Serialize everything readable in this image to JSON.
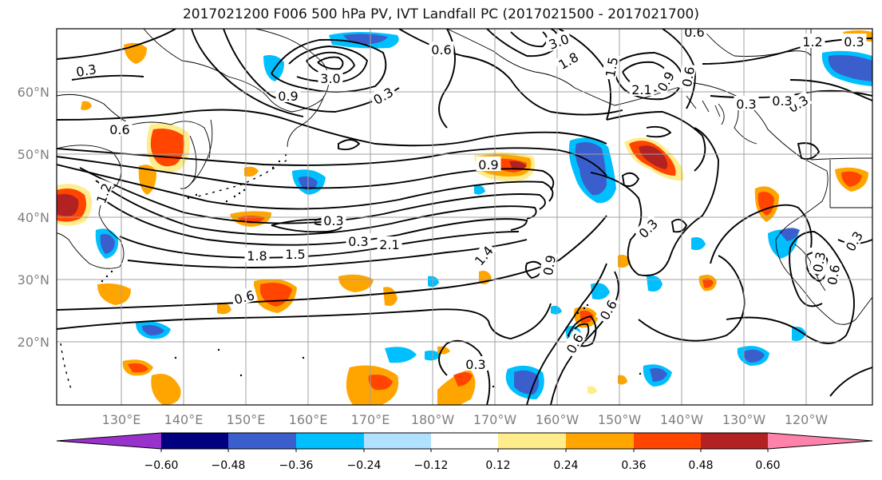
{
  "title": "2017021200 F006 500 hPa PV, IVT Landfall PC (2017021500 - 2017021700)",
  "lat_labels": [
    "60°N",
    "50°N",
    "40°N",
    "30°N",
    "20°N"
  ],
  "lon_labels": [
    "130°E",
    "140°E",
    "150°E",
    "160°E",
    "170°E",
    "180°W",
    "170°W",
    "160°W",
    "150°W",
    "140°W",
    "130°W",
    "120°W"
  ],
  "colorbar": {
    "colors": [
      "#9932cc",
      "#000080",
      "#3a5fcd",
      "#00bfff",
      "#b0e2ff",
      "#ffffff",
      "#ffec8b",
      "#ffa500",
      "#ff4500",
      "#b22222",
      "#ff82ab"
    ],
    "tick_labels": [
      "−0.60",
      "−0.48",
      "−0.36",
      "−0.24",
      "−0.12",
      "0.12",
      "0.24",
      "0.36",
      "0.48",
      "0.60"
    ]
  },
  "contour_labels": [
    "0.3",
    "1.2",
    "3.0",
    "0.6",
    "0.9",
    "0.3",
    "3.0",
    "1.8",
    "1.5",
    "2.1",
    "0.9",
    "0.6",
    "0.3",
    "0.3",
    "0.6",
    "0.9",
    "1.2",
    "0.3",
    "0.6",
    "0.6",
    "0.3",
    "0.3",
    "2.1",
    "1.8",
    "1.5",
    "1.4",
    "0.9",
    "0.3",
    "0.6",
    "0.3",
    "0.3",
    "0.6",
    "0.3",
    "0.6",
    "0.3"
  ],
  "style": {
    "anomaly_positive_strong": "#b22222",
    "anomaly_positive": "#ff4500",
    "anomaly_warm": "#ffa500",
    "anomaly_weak": "#ffec8b",
    "anomaly_negative": "#00bfff",
    "anomaly_negative_strong": "#3a5fcd",
    "grid_color": "#a0a0a0"
  }
}
